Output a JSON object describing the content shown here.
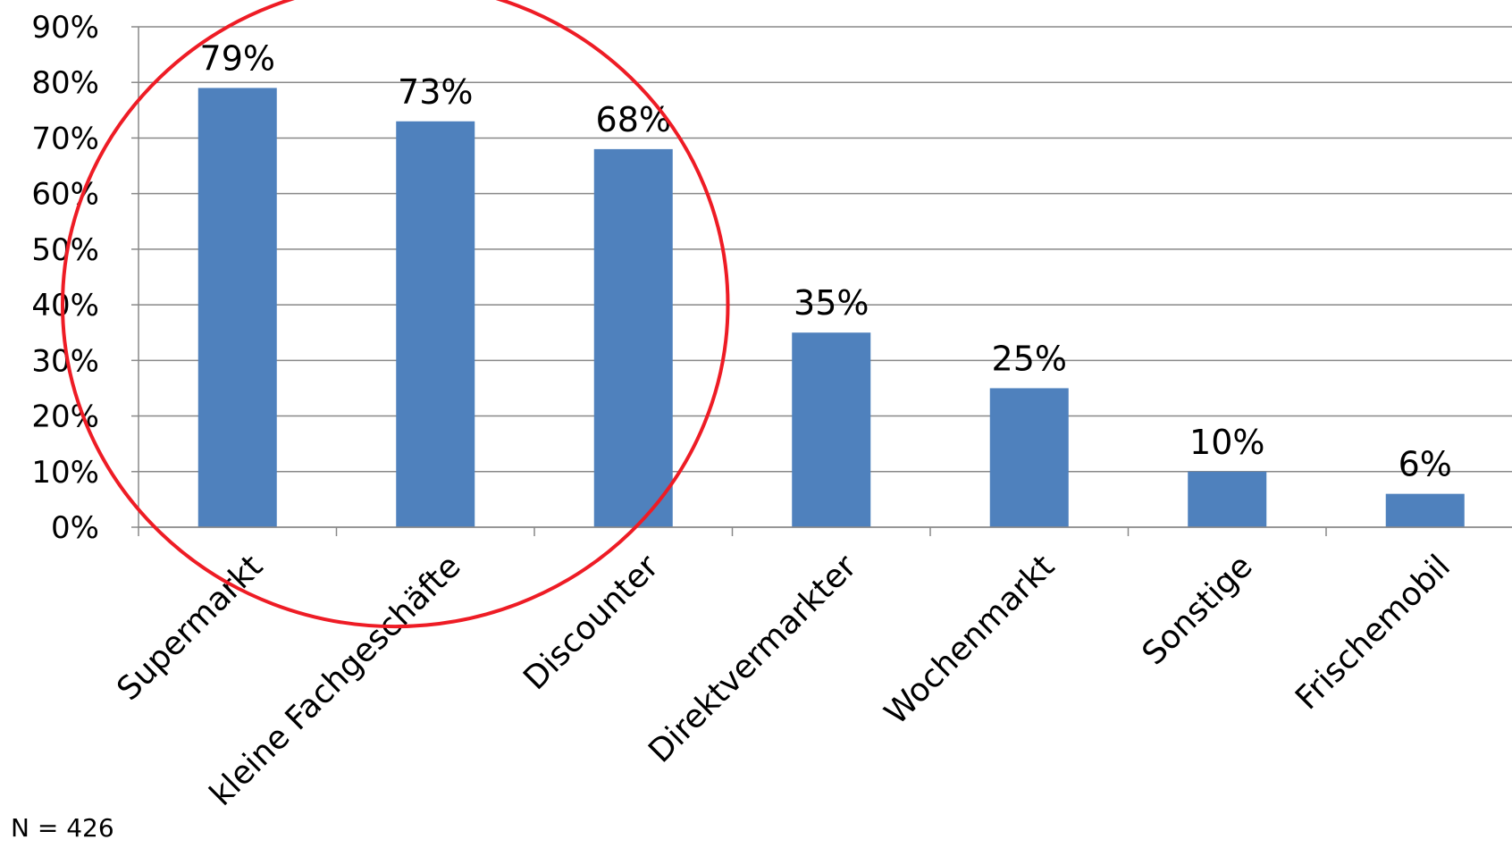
{
  "chart_data": {
    "type": "bar",
    "categories": [
      "Supermarkt",
      "kleine Fachgeschäfte",
      "Discounter",
      "Direktvermarkter",
      "Wochenmarkt",
      "Sonstige",
      "Frischemobil"
    ],
    "values": [
      79,
      73,
      68,
      35,
      25,
      10,
      6
    ],
    "data_labels": [
      "79%",
      "73%",
      "68%",
      "35%",
      "25%",
      "10%",
      "6%"
    ],
    "ylim": [
      0,
      90
    ],
    "yticks": [
      0,
      10,
      20,
      30,
      40,
      50,
      60,
      70,
      80,
      90
    ],
    "ytick_labels": [
      "0%",
      "10%",
      "20%",
      "30%",
      "40%",
      "50%",
      "60%",
      "70%",
      "80%",
      "90%"
    ],
    "title": "",
    "xlabel": "",
    "ylabel": "",
    "grid": true,
    "bar_color": "#4F81BD",
    "highlight_color": "#EE1C25",
    "highlighted_categories": [
      "Supermarkt",
      "kleine Fachgeschäfte",
      "Discounter"
    ]
  },
  "note": "N = 426"
}
